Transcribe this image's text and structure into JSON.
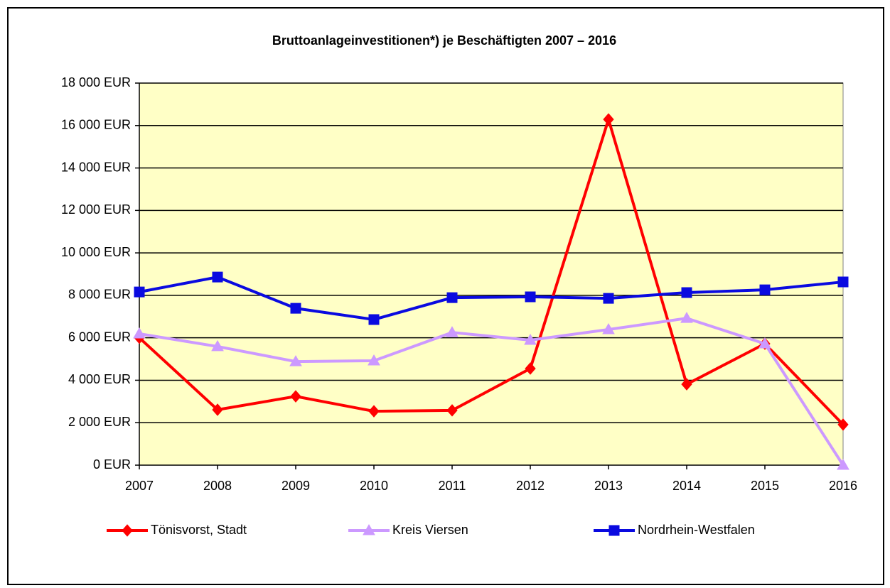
{
  "chart_data": {
    "type": "line",
    "title": "Bruttoanlageinvestitionen*) je Beschäftigten 2007 – 2016",
    "categories": [
      "2007",
      "2008",
      "2009",
      "2010",
      "2011",
      "2012",
      "2013",
      "2014",
      "2015",
      "2016"
    ],
    "series": [
      {
        "name": "Tönisvorst, Stadt",
        "color": "#ff0000",
        "marker": "diamond",
        "values": [
          6000,
          2610,
          3240,
          2540,
          2580,
          4550,
          16290,
          3810,
          5720,
          1910
        ]
      },
      {
        "name": "Kreis Viersen",
        "color": "#cc99ff",
        "marker": "triangle",
        "values": [
          6190,
          5590,
          4880,
          4920,
          6250,
          5890,
          6390,
          6920,
          5720,
          0
        ]
      },
      {
        "name": "Nordrhein-Westfalen",
        "color": "#0a0ae0",
        "marker": "square",
        "values": [
          8160,
          8860,
          7390,
          6860,
          7890,
          7930,
          7860,
          8130,
          8260,
          8630
        ]
      }
    ],
    "ylim": [
      0,
      18000
    ],
    "yticks": [
      {
        "value": 0,
        "label": "0 EUR"
      },
      {
        "value": 2000,
        "label": "2 000 EUR"
      },
      {
        "value": 4000,
        "label": "4 000 EUR"
      },
      {
        "value": 6000,
        "label": "6 000 EUR"
      },
      {
        "value": 8000,
        "label": "8 000 EUR"
      },
      {
        "value": 10000,
        "label": "10 000 EUR"
      },
      {
        "value": 12000,
        "label": "12 000 EUR"
      },
      {
        "value": 14000,
        "label": "14 000 EUR"
      },
      {
        "value": 16000,
        "label": "16 000 EUR"
      },
      {
        "value": 18000,
        "label": "18 000 EUR"
      }
    ],
    "grid": true,
    "legend": "bottom"
  }
}
